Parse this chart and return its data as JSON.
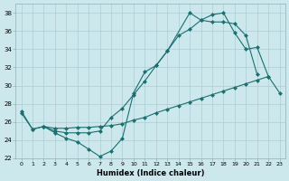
{
  "xlabel": "Humidex (Indice chaleur)",
  "bg_color": "#cce8ec",
  "grid_color": "#aacdd4",
  "line_color": "#1a7070",
  "xlim": [
    -0.5,
    23.5
  ],
  "ylim": [
    22,
    39
  ],
  "xticks": [
    0,
    1,
    2,
    3,
    4,
    5,
    6,
    7,
    8,
    9,
    10,
    11,
    12,
    13,
    14,
    15,
    16,
    17,
    18,
    19,
    20,
    21,
    22,
    23
  ],
  "yticks": [
    22,
    24,
    26,
    28,
    30,
    32,
    34,
    36,
    38
  ],
  "line1_x": [
    0,
    1,
    2,
    3,
    4,
    5,
    6,
    7,
    8,
    9,
    10,
    11,
    12,
    13,
    15,
    16,
    17,
    18,
    19,
    20,
    21
  ],
  "line1_y": [
    27.2,
    25.2,
    25.5,
    24.8,
    24.2,
    23.8,
    23.0,
    22.2,
    22.8,
    24.2,
    29.2,
    31.5,
    32.2,
    33.8,
    38.0,
    37.2,
    37.0,
    37.0,
    36.8,
    35.5,
    31.2
  ],
  "line2_x": [
    0,
    1,
    2,
    3,
    4,
    5,
    6,
    7,
    8,
    9,
    10,
    11,
    12,
    13,
    14,
    15,
    16,
    17,
    18,
    19,
    20,
    21,
    22,
    23
  ],
  "line2_y": [
    27.0,
    25.2,
    25.5,
    25.3,
    25.3,
    25.4,
    25.4,
    25.5,
    25.6,
    25.8,
    26.2,
    26.5,
    27.0,
    27.4,
    27.8,
    28.2,
    28.6,
    29.0,
    29.4,
    29.8,
    30.2,
    30.6,
    31.0,
    29.2
  ],
  "line3_x": [
    2,
    3,
    4,
    5,
    6,
    7,
    8,
    9,
    10,
    11,
    12,
    13,
    14,
    15,
    16,
    17,
    18,
    19,
    20,
    21,
    22
  ],
  "line3_y": [
    25.5,
    25.0,
    24.8,
    24.8,
    24.8,
    25.0,
    26.5,
    27.5,
    29.0,
    30.5,
    32.2,
    33.8,
    35.5,
    36.2,
    37.2,
    37.8,
    38.0,
    35.8,
    34.0,
    34.2,
    31.0
  ]
}
